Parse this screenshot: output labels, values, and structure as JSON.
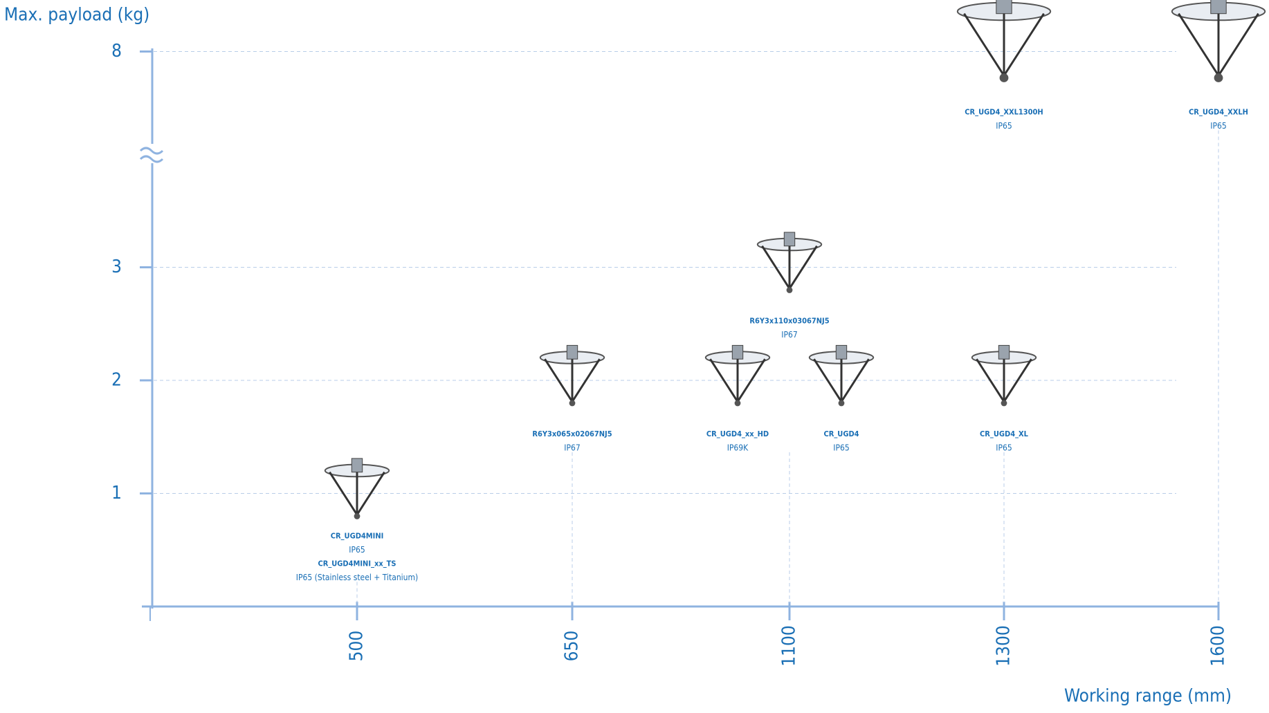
{
  "chart_data": {
    "type": "scatter",
    "y_label": "Max. payload (kg)",
    "x_label": "Working range (mm)",
    "categories": [
      "500",
      "650",
      "1100",
      "1300",
      "1600"
    ],
    "yticks": [
      1,
      2,
      3,
      8
    ],
    "axis_break": true,
    "grid": true,
    "color": "#1a6fb5",
    "products": [
      {
        "x": "500",
        "payload": 1,
        "labels": [
          {
            "name": "CR_UGD4MINI",
            "rating": "IP65"
          },
          {
            "name": "CR_UGD4MINI_xx_TS",
            "rating": "IP65 (Stainless steel + Titanium)"
          }
        ]
      },
      {
        "x": "650",
        "payload": 2,
        "labels": [
          {
            "name": "R6Y3x065x02067NJ5",
            "rating": "IP67"
          }
        ]
      },
      {
        "x": "1100",
        "payload": 3,
        "labels": [
          {
            "name": "R6Y3x110x03067NJ5",
            "rating": "IP67"
          }
        ]
      },
      {
        "x": "1100",
        "payload": 2,
        "labels": [
          {
            "name": "CR_UGD4_xx_HD",
            "rating": "IP69K"
          }
        ]
      },
      {
        "x": "1100",
        "payload": 2,
        "labels": [
          {
            "name": "CR_UGD4",
            "rating": "IP65"
          }
        ]
      },
      {
        "x": "1300",
        "payload": 2,
        "labels": [
          {
            "name": "CR_UGD4_XL",
            "rating": "IP65"
          }
        ]
      },
      {
        "x": "1300",
        "payload": 8,
        "labels": [
          {
            "name": "CR_UGD4_XXL1300H",
            "rating": "IP65"
          }
        ]
      },
      {
        "x": "1600",
        "payload": 8,
        "labels": [
          {
            "name": "CR_UGD4_XXLH",
            "rating": "IP65"
          }
        ]
      }
    ]
  }
}
